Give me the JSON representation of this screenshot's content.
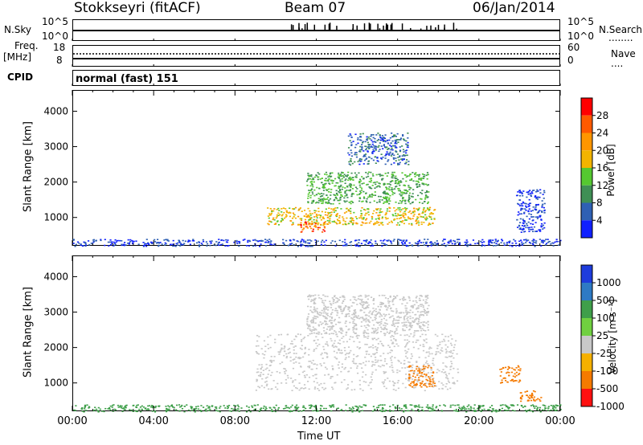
{
  "header": {
    "station": "Stokkseyri (fitACF)",
    "beam": "Beam 07",
    "date": "06/Jan/2014"
  },
  "aux_panels": {
    "nsky_label": "N.Sky",
    "nsky_top": "10^5",
    "nsky_bottom": "10^0",
    "right_top": "10^5",
    "right_bottom": "10^0",
    "nsearch_label": "N.Search",
    "nsearch_dots": "........",
    "freq_label": "Freq.",
    "freq_unit": "[MHz]",
    "freq_top": "18",
    "freq_bottom": "8",
    "nave_top": "60",
    "nave_bottom": "0",
    "nave_label": "Nave",
    "nave_dots": "....",
    "cpid_label": "CPID",
    "cpid_value": "normal (fast) 151"
  },
  "colorbars": {
    "power": {
      "title": "Power [dB]",
      "labels": [
        "28",
        "24",
        "20",
        "16",
        "12",
        "8",
        "4"
      ],
      "colors": [
        "#ff0000",
        "#ff5a00",
        "#ff9600",
        "#f2b400",
        "#55c830",
        "#3f8f55",
        "#2f60b4",
        "#1020ff"
      ]
    },
    "velocity": {
      "title": "Velocity [m s⁻¹]",
      "labels": [
        "1000",
        "500",
        "100",
        "25",
        "-25",
        "-100",
        "-500",
        "-1000"
      ],
      "colors": [
        "#1e3cdc",
        "#2e7ac4",
        "#3f9f4a",
        "#70d040",
        "#c8c8c8",
        "#f5b000",
        "#f57a00",
        "#ff1010"
      ]
    }
  },
  "chart_data": [
    {
      "type": "heatmap",
      "panel": "power",
      "ylabel": "Slant Range [km]",
      "yticks": [
        "4000",
        "3000",
        "2000",
        "1000"
      ],
      "ylim": [
        200,
        4600
      ],
      "xlim": [
        "00:00",
        "24:00"
      ],
      "colorbar_range_dB": [
        0,
        32
      ],
      "regions": [
        {
          "t0": 9.5,
          "t1": 17.8,
          "r0": 800,
          "r1": 1300,
          "level": 20
        },
        {
          "t0": 11.5,
          "t1": 17.5,
          "r0": 1400,
          "r1": 2300,
          "level": 14
        },
        {
          "t0": 13.5,
          "t1": 16.5,
          "r0": 2500,
          "r1": 3400,
          "level": 8
        },
        {
          "t0": 11.2,
          "t1": 12.4,
          "r0": 600,
          "r1": 900,
          "level": 28
        },
        {
          "t0": 21.8,
          "t1": 23.2,
          "r0": 600,
          "r1": 1800,
          "level": 6
        },
        {
          "t0": 0.0,
          "t1": 24.0,
          "r0": 200,
          "r1": 400,
          "level": 6
        }
      ]
    },
    {
      "type": "heatmap",
      "panel": "velocity",
      "ylabel": "Slant Range [km]",
      "yticks": [
        "4000",
        "3000",
        "2000",
        "1000"
      ],
      "ylim": [
        200,
        4600
      ],
      "xlim": [
        "00:00",
        "24:00"
      ],
      "xticks": [
        "00:00",
        "04:00",
        "08:00",
        "12:00",
        "16:00",
        "20:00",
        "00:00"
      ],
      "xlabel": "Time UT",
      "colorbar_range_ms": [
        -1000,
        1000
      ],
      "regions": [
        {
          "t0": 9.0,
          "t1": 19.0,
          "r0": 800,
          "r1": 2400,
          "level": 0
        },
        {
          "t0": 11.5,
          "t1": 17.5,
          "r0": 2400,
          "r1": 3500,
          "level": 0
        },
        {
          "t0": 16.5,
          "t1": 17.8,
          "r0": 900,
          "r1": 1500,
          "level": -500
        },
        {
          "t0": 21.0,
          "t1": 22.0,
          "r0": 1000,
          "r1": 1500,
          "level": -500
        },
        {
          "t0": 22.0,
          "t1": 23.2,
          "r0": 500,
          "r1": 800,
          "level": -500
        },
        {
          "t0": 0.0,
          "t1": 24.0,
          "r0": 200,
          "r1": 400,
          "level": 100
        }
      ]
    }
  ]
}
